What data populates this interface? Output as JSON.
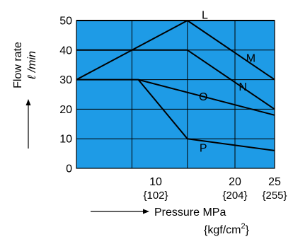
{
  "chart_data": {
    "type": "line",
    "plot_color": "#1e9be6",
    "line_color": "#000000",
    "grid_color": "#000000",
    "grid": true,
    "xlim": [
      0,
      25
    ],
    "ylim": [
      0,
      50
    ],
    "x_gridlines": [
      7,
      14,
      20,
      25
    ],
    "y_ticks": [
      {
        "value": 0,
        "label": "0"
      },
      {
        "value": 10,
        "label": "10"
      },
      {
        "value": 20,
        "label": "20"
      },
      {
        "value": 30,
        "label": "30"
      },
      {
        "value": 40,
        "label": "40"
      },
      {
        "value": 50,
        "label": "50"
      }
    ],
    "x_ticks": [
      {
        "value": 10,
        "label": "10",
        "sublabel": "{102}"
      },
      {
        "value": 20,
        "label": "20",
        "sublabel": "{204}"
      },
      {
        "value": 25,
        "label": "25",
        "sublabel": "{255}"
      }
    ],
    "xlabel": "Pressure MPa",
    "xlabel_unit_base": "{kgf/cm",
    "xlabel_unit_sup": "2",
    "xlabel_unit_end": "}",
    "ylabel": "Flow rate",
    "ylabel_unit": "ℓ /min",
    "series": [
      {
        "name": "L",
        "label_at": [
          16.2,
          51.6
        ],
        "points": [
          [
            0,
            50
          ],
          [
            14,
            50
          ],
          [
            25,
            50
          ]
        ]
      },
      {
        "name": "M",
        "label_at": [
          22.0,
          37.0
        ],
        "points": [
          [
            0,
            40
          ],
          [
            14,
            40
          ],
          [
            25,
            20
          ]
        ]
      },
      {
        "name": "N",
        "label_at": [
          21.0,
          27.3
        ],
        "points": [
          [
            0,
            30
          ],
          [
            14,
            50
          ],
          [
            25,
            30
          ]
        ]
      },
      {
        "name": "O",
        "label_at": [
          16.0,
          24.0
        ],
        "points": [
          [
            0,
            30
          ],
          [
            7.8,
            30
          ],
          [
            25,
            18
          ]
        ]
      },
      {
        "name": "P",
        "label_at": [
          16.0,
          6.6
        ],
        "points": [
          [
            7.8,
            30
          ],
          [
            14,
            10
          ],
          [
            25,
            6
          ]
        ]
      }
    ]
  }
}
